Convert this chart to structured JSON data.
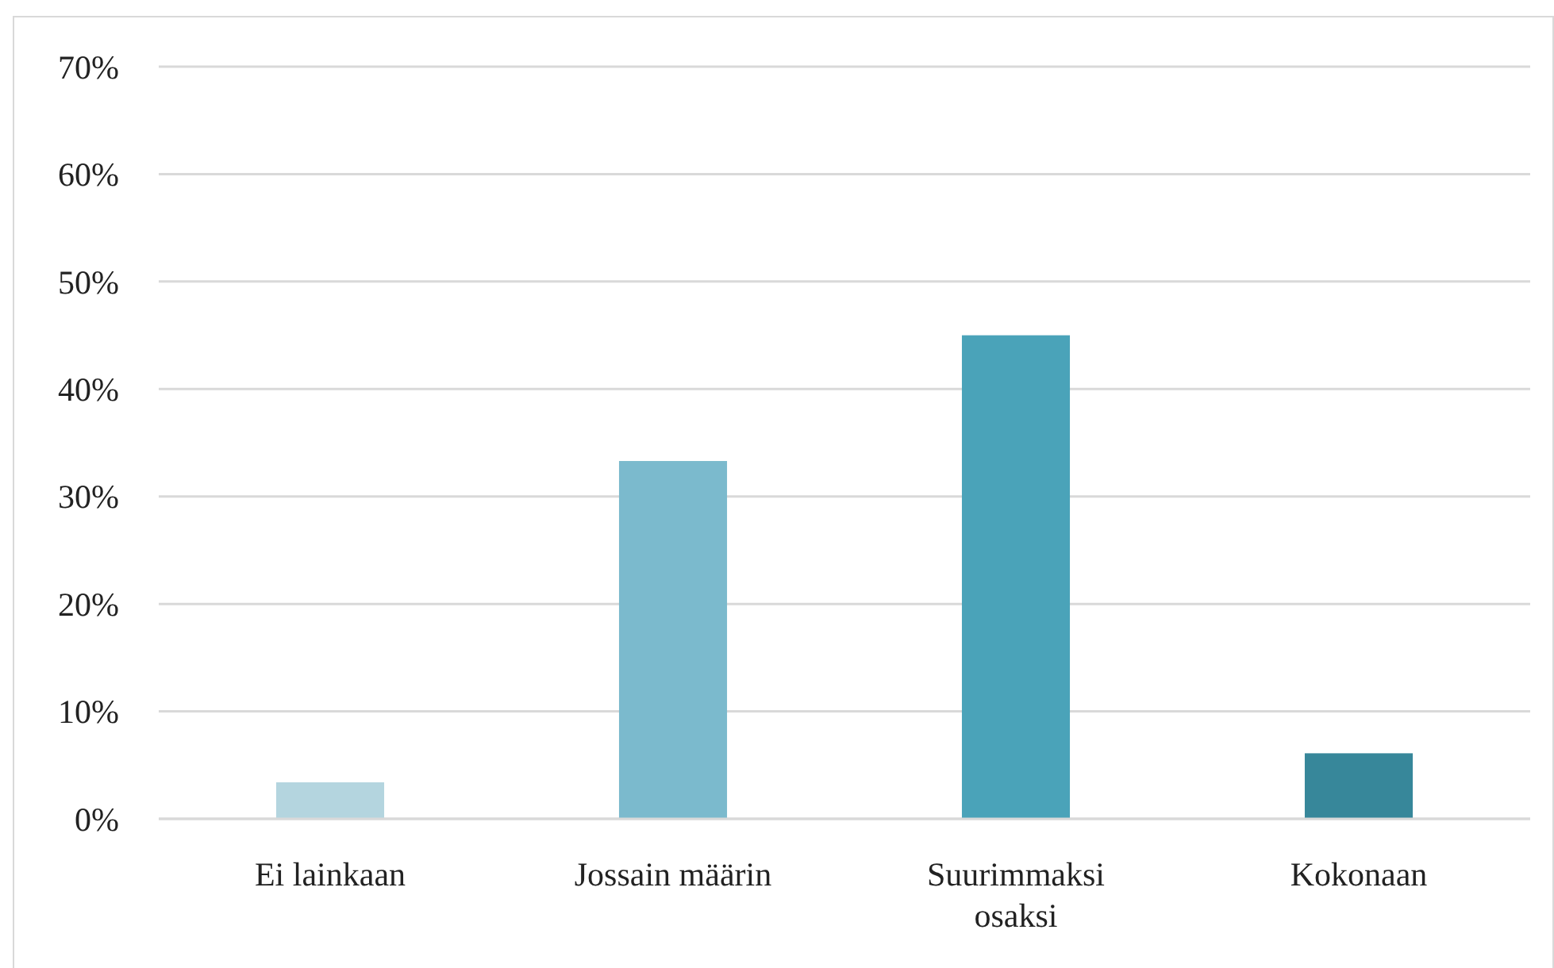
{
  "chart_data": {
    "type": "bar",
    "categories": [
      "Ei lainkaan",
      "Jossain määrin",
      "Suurimmaksi osaksi",
      "Kokonaan"
    ],
    "values": [
      3.4,
      33.3,
      45,
      6.1
    ],
    "colors": [
      "#b4d5df",
      "#7bbacd",
      "#4aa3b9",
      "#37879a"
    ],
    "ylim": [
      0,
      70
    ],
    "yticks": [
      {
        "value": 0,
        "label": "0%"
      },
      {
        "value": 10,
        "label": "10%"
      },
      {
        "value": 20,
        "label": "20%"
      },
      {
        "value": 30,
        "label": "30%"
      },
      {
        "value": 40,
        "label": "40%"
      },
      {
        "value": 50,
        "label": "50%"
      },
      {
        "value": 60,
        "label": "60%"
      },
      {
        "value": 70,
        "label": "70%"
      }
    ],
    "grid": "y"
  }
}
